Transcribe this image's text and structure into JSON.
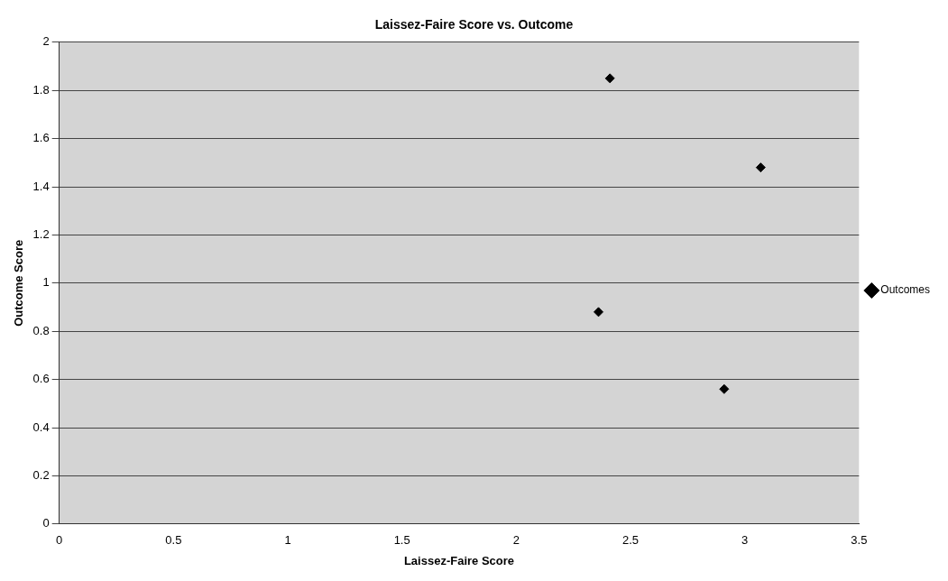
{
  "chart_data": {
    "type": "scatter",
    "title": "Laissez-Faire Score vs. Outcome",
    "xlabel": "Laissez-Faire Score",
    "ylabel": "Outcome Score",
    "series": [
      {
        "name": "Outcomes",
        "color": "#000000",
        "x": [
          2.41,
          3.07,
          2.36,
          2.91
        ],
        "values": [
          1.85,
          1.48,
          0.88,
          0.56
        ]
      }
    ],
    "xlim": [
      0,
      3.5
    ],
    "xticks": [
      0,
      0.5,
      1,
      1.5,
      2,
      2.5,
      3,
      3.5
    ],
    "ylim": [
      0,
      2
    ],
    "yticks": [
      0,
      0.2,
      0.4,
      0.6,
      0.8,
      1,
      1.2,
      1.4,
      1.6,
      1.8,
      2
    ],
    "grid": "y",
    "legend": "right",
    "marker": "diamond"
  }
}
